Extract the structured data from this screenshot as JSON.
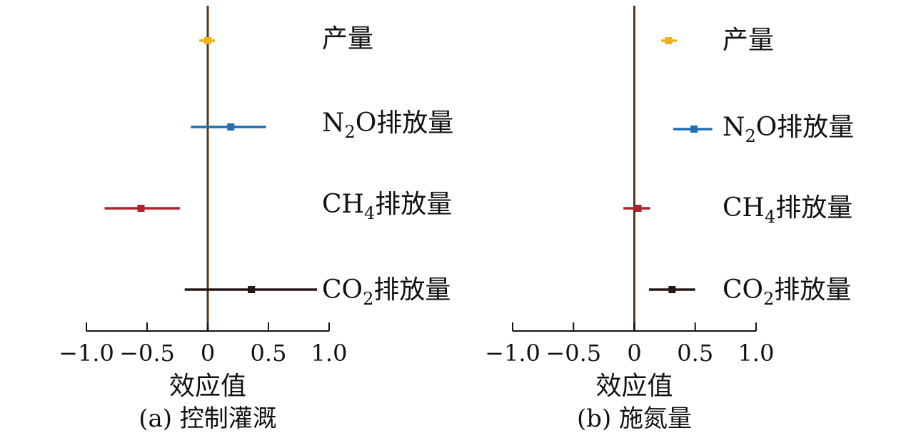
{
  "chart_data": [
    {
      "type": "forest",
      "caption": "(a) 控制灌溉",
      "xlabel": "效应值",
      "xlim": [
        -1.0,
        1.0
      ],
      "xticks": [
        -1.0,
        -0.5,
        0,
        0.5,
        1.0
      ],
      "xtick_labels": [
        "−1.0",
        "−0.5",
        "0",
        "0.5",
        "1.0"
      ],
      "reference_line": 0,
      "reference_color": "#5a3418",
      "series": [
        {
          "name": "产量",
          "label_parts": [
            {
              "t": "产量"
            }
          ],
          "estimate": 0.0,
          "ci_low": -0.07,
          "ci_high": 0.06,
          "color": "#f2b11c"
        },
        {
          "name": "N2O排放量",
          "label_parts": [
            {
              "t": "N"
            },
            {
              "t": "2",
              "sub": true
            },
            {
              "t": "O排放量"
            }
          ],
          "estimate": 0.19,
          "ci_low": -0.14,
          "ci_high": 0.48,
          "color": "#1f6fb2"
        },
        {
          "name": "CH4排放量",
          "label_parts": [
            {
              "t": "CH"
            },
            {
              "t": "4",
              "sub": true
            },
            {
              "t": "排放量"
            }
          ],
          "estimate": -0.55,
          "ci_low": -0.85,
          "ci_high": -0.23,
          "color": "#b3222a"
        },
        {
          "name": "CO2排放量",
          "label_parts": [
            {
              "t": "CO"
            },
            {
              "t": "2",
              "sub": true
            },
            {
              "t": "排放量"
            }
          ],
          "estimate": 0.36,
          "ci_low": -0.19,
          "ci_high": 0.9,
          "color": "#231815"
        }
      ]
    },
    {
      "type": "forest",
      "caption": "(b) 施氮量",
      "xlabel": "效应值",
      "xlim": [
        -1.0,
        1.0
      ],
      "xticks": [
        -1.0,
        -0.5,
        0,
        0.5,
        1.0
      ],
      "xtick_labels": [
        "−1.0",
        "−0.5",
        "0",
        "0.5",
        "1.0"
      ],
      "reference_line": 0,
      "reference_color": "#5a3418",
      "series": [
        {
          "name": "产量",
          "label_parts": [
            {
              "t": "产量"
            }
          ],
          "estimate": 0.28,
          "ci_low": 0.22,
          "ci_high": 0.35,
          "color": "#f2b11c"
        },
        {
          "name": "N2O排放量",
          "label_parts": [
            {
              "t": "N"
            },
            {
              "t": "2",
              "sub": true
            },
            {
              "t": "O排放量"
            }
          ],
          "estimate": 0.49,
          "ci_low": 0.32,
          "ci_high": 0.64,
          "color": "#1f6fb2"
        },
        {
          "name": "CH4排放量",
          "label_parts": [
            {
              "t": "CH"
            },
            {
              "t": "4",
              "sub": true
            },
            {
              "t": "排放量"
            }
          ],
          "estimate": 0.03,
          "ci_low": -0.09,
          "ci_high": 0.13,
          "color": "#b3222a"
        },
        {
          "name": "CO2排放量",
          "label_parts": [
            {
              "t": "CO"
            },
            {
              "t": "2",
              "sub": true
            },
            {
              "t": "排放量"
            }
          ],
          "estimate": 0.31,
          "ci_low": 0.12,
          "ci_high": 0.5,
          "color": "#231815"
        }
      ]
    }
  ]
}
